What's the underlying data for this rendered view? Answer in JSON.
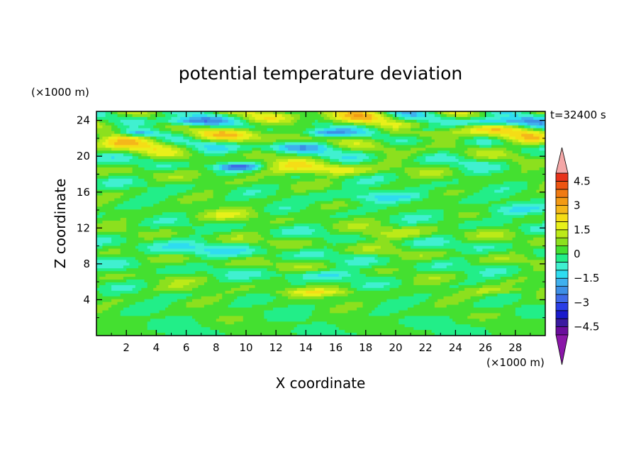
{
  "chart_data": {
    "type": "heatmap",
    "title": "potential temperature deviation",
    "xlabel": "X coordinate",
    "ylabel": "Z coordinate",
    "x_unit": "(×1000 m)",
    "y_unit": "(×1000 m)",
    "time_label": "t=32400 s",
    "xlim": [
      0,
      30
    ],
    "ylim": [
      0,
      25
    ],
    "x_ticks": [
      2,
      4,
      6,
      8,
      10,
      12,
      14,
      16,
      18,
      20,
      22,
      24,
      26,
      28
    ],
    "y_ticks": [
      4,
      8,
      12,
      16,
      20,
      24
    ],
    "colorbar": {
      "levels": [
        -5,
        -4.5,
        -4,
        -3.5,
        -3,
        -2.5,
        -2,
        -1.5,
        -1,
        -0.5,
        0,
        0.5,
        1,
        1.5,
        2,
        2.5,
        3,
        3.5,
        4,
        4.5,
        5
      ],
      "colors": [
        "#6a0d9c",
        "#3a1aa0",
        "#1a1acc",
        "#2a3ee6",
        "#3f6ae8",
        "#3d8fe6",
        "#3fb0ee",
        "#2fdcf0",
        "#40f0d0",
        "#22ee88",
        "#44e030",
        "#8ce01e",
        "#bcea18",
        "#e8f01a",
        "#f5dd16",
        "#f5b71a",
        "#f39a14",
        "#f07a12",
        "#ed5512",
        "#e8321a"
      ],
      "under_color": "#8a16a8",
      "over_color": "#f4a7a7",
      "tick_labels": [
        "4.5",
        "3",
        "1.5",
        "0",
        "−1.5",
        "−3",
        "−4.5"
      ],
      "tick_values": [
        4.5,
        3,
        1.5,
        0,
        -1.5,
        -3,
        -4.5
      ]
    }
  }
}
